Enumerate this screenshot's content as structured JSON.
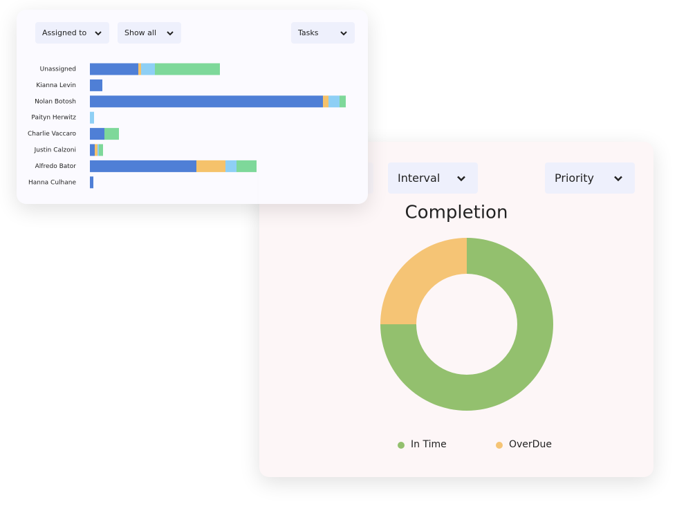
{
  "filters_top": [
    "Assigned to",
    "Show all",
    "Tasks"
  ],
  "filters_bottom": [
    "Interval",
    "Priority"
  ],
  "chart_data": [
    {
      "type": "bar",
      "orientation": "horizontal",
      "stacked": true,
      "categories": [
        "Unassigned",
        "Kianna Levin",
        "Nolan Botosh",
        "Paityn Herwitz",
        "Charlie Vaccaro",
        "Justin Calzoni",
        "Alfredo Bator",
        "Hanna Culhane"
      ],
      "series": [
        {
          "color": "#4f7fd6",
          "values": [
            70,
            18,
            337,
            0,
            21,
            7,
            154,
            5
          ]
        },
        {
          "color": "#f5c26b",
          "values": [
            4,
            0,
            8,
            0,
            0,
            4,
            42,
            0
          ]
        },
        {
          "color": "#8ecff5",
          "values": [
            20,
            0,
            16,
            6,
            0,
            2,
            16,
            0
          ]
        },
        {
          "color": "#7ed89a",
          "values": [
            94,
            0,
            9,
            0,
            21,
            6,
            29,
            0
          ]
        }
      ]
    },
    {
      "type": "pie",
      "donut": true,
      "title": "Completion",
      "categories": [
        "In Time",
        "OverDue"
      ],
      "values": [
        75,
        25
      ],
      "colors": [
        "#93c06e",
        "#f5c475"
      ],
      "legend": "bottom"
    }
  ]
}
